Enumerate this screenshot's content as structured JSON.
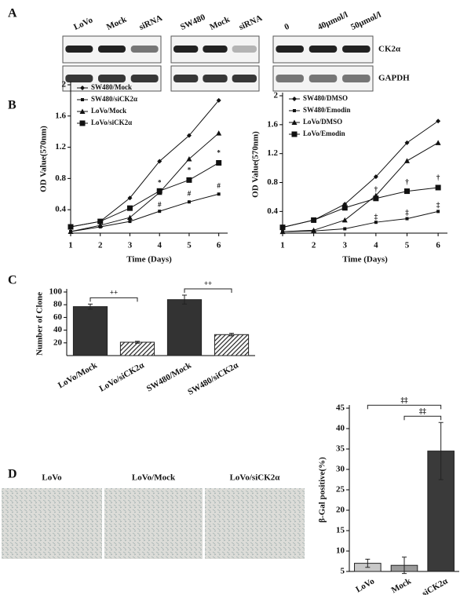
{
  "panels": [
    "A",
    "B",
    "C",
    "D"
  ],
  "blot": {
    "groups": [
      [
        "LoVo",
        "Mock",
        "siRNA"
      ],
      [
        "SW480",
        "Mock",
        "siRNA"
      ],
      [
        "0",
        "40μmol/l",
        "50μmol/l"
      ]
    ],
    "rows": [
      "CK2α",
      "GAPDH"
    ]
  },
  "photos": [
    "LoVo",
    "LoVo/Mock",
    "LoVo/siCK2α"
  ],
  "chart_data": [
    {
      "type": "line",
      "ylabel": "OD Value(570nm)",
      "xlabel": "Time (Days)",
      "x": [
        1,
        2,
        3,
        4,
        5,
        6
      ],
      "xlim": [
        1,
        6.3
      ],
      "xticks": [
        1,
        2,
        3,
        4,
        5,
        6
      ],
      "ylim": [
        0.1,
        2.0
      ],
      "yticks": [
        0.4,
        0.8,
        1.2,
        1.6,
        2.0
      ],
      "series": [
        {
          "name": "SW480/Mock",
          "marker": "diamond",
          "color": "#111111",
          "values": [
            0.18,
            0.25,
            0.55,
            1.02,
            1.35,
            1.8
          ]
        },
        {
          "name": "SW480/siCK2α",
          "marker": "square",
          "color": "#111111",
          "values": [
            0.12,
            0.18,
            0.25,
            0.38,
            0.5,
            0.6
          ]
        },
        {
          "name": "LoVo/Mock",
          "marker": "triangle",
          "color": "#111111",
          "values": [
            0.12,
            0.2,
            0.3,
            0.62,
            1.05,
            1.38
          ]
        },
        {
          "name": "LoVo/siCK2α",
          "marker": "bigsquare",
          "color": "#111111",
          "values": [
            0.18,
            0.25,
            0.42,
            0.64,
            0.78,
            1.0
          ]
        }
      ],
      "annotations": [
        {
          "text": "*",
          "x": 4,
          "y": 0.74
        },
        {
          "text": "*",
          "x": 5,
          "y": 0.9
        },
        {
          "text": "*",
          "x": 6,
          "y": 1.12
        },
        {
          "text": "#",
          "x": 4,
          "y": 0.46
        },
        {
          "text": "#",
          "x": 5,
          "y": 0.6
        },
        {
          "text": "#",
          "x": 6,
          "y": 0.7
        }
      ]
    },
    {
      "type": "line",
      "ylabel": "OD Value(570nm)",
      "xlabel": "Time (Days)",
      "x": [
        1,
        2,
        3,
        4,
        5,
        6
      ],
      "xlim": [
        1,
        6.3
      ],
      "xticks": [
        1,
        2,
        3,
        4,
        5,
        6
      ],
      "ylim": [
        0.1,
        2.0
      ],
      "yticks": [
        0.4,
        0.8,
        1.2,
        1.6,
        2.0
      ],
      "series": [
        {
          "name": "SW480/DMSO",
          "marker": "diamond",
          "color": "#111111",
          "values": [
            0.18,
            0.28,
            0.5,
            0.88,
            1.35,
            1.65
          ]
        },
        {
          "name": "SW480/Emodin",
          "marker": "square",
          "color": "#111111",
          "values": [
            0.12,
            0.13,
            0.16,
            0.25,
            0.3,
            0.4
          ]
        },
        {
          "name": "LoVo/DMSO",
          "marker": "triangle",
          "color": "#111111",
          "values": [
            0.12,
            0.14,
            0.28,
            0.62,
            1.1,
            1.35
          ]
        },
        {
          "name": "LoVo/Emodin",
          "marker": "bigsquare",
          "color": "#111111",
          "values": [
            0.18,
            0.28,
            0.45,
            0.58,
            0.68,
            0.73
          ]
        }
      ],
      "annotations": [
        {
          "text": "†",
          "x": 4,
          "y": 0.7
        },
        {
          "text": "†",
          "x": 5,
          "y": 0.8
        },
        {
          "text": "†",
          "x": 6,
          "y": 0.86
        },
        {
          "text": "‡",
          "x": 4,
          "y": 0.32
        },
        {
          "text": "‡",
          "x": 5,
          "y": 0.38
        },
        {
          "text": "‡",
          "x": 6,
          "y": 0.48
        }
      ]
    },
    {
      "type": "bar",
      "ylabel": "Number of Clone",
      "categories": [
        "LoVo/Mock",
        "LoVo/siCK2α",
        "SW480/Mock",
        "SW480/siCK2α"
      ],
      "values": [
        77,
        21,
        88,
        33
      ],
      "errors": [
        4,
        1.5,
        7,
        2
      ],
      "colors": [
        "#333333",
        "#333333",
        "#333333",
        "#333333"
      ],
      "hatched": [
        false,
        true,
        false,
        true
      ],
      "ylim": [
        0,
        100
      ],
      "yticks": [
        20,
        40,
        60,
        80,
        100
      ],
      "brackets": [
        {
          "text": "++",
          "from": 0,
          "to": 1
        },
        {
          "text": "++",
          "from": 2,
          "to": 3
        }
      ]
    },
    {
      "type": "bar",
      "ylabel": "β-Gal positive(%)",
      "categories": [
        "LoVo",
        "Mock",
        "siCK2α"
      ],
      "values": [
        7,
        6.5,
        34.5
      ],
      "errors": [
        1,
        2,
        7
      ],
      "colors": [
        "#c8c8c8",
        "#9a9a9a",
        "#3a3a3a"
      ],
      "hatched": [
        false,
        false,
        false
      ],
      "ylim": [
        5,
        45
      ],
      "yticks": [
        5,
        10,
        15,
        20,
        25,
        30,
        35,
        40,
        45
      ],
      "brackets": [
        {
          "text": "‡‡",
          "from": 0,
          "to": 2
        },
        {
          "text": "‡‡",
          "from": 1,
          "to": 2
        }
      ]
    }
  ]
}
